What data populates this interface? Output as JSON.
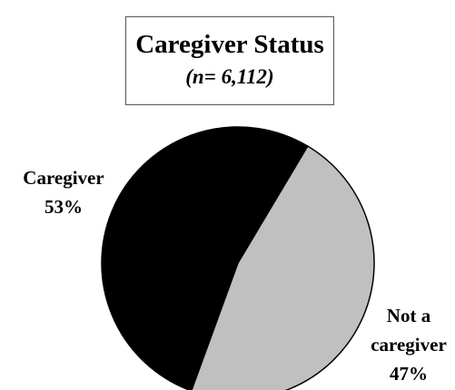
{
  "chart_data": {
    "type": "pie",
    "title": "Caregiver Status",
    "subtitle": "(n= 6,112)",
    "categories": [
      "Caregiver",
      "Not a caregiver"
    ],
    "values": [
      53,
      47
    ],
    "value_labels": [
      "53%",
      "47%"
    ],
    "colors": [
      "#000000",
      "#c0c0c0"
    ]
  }
}
